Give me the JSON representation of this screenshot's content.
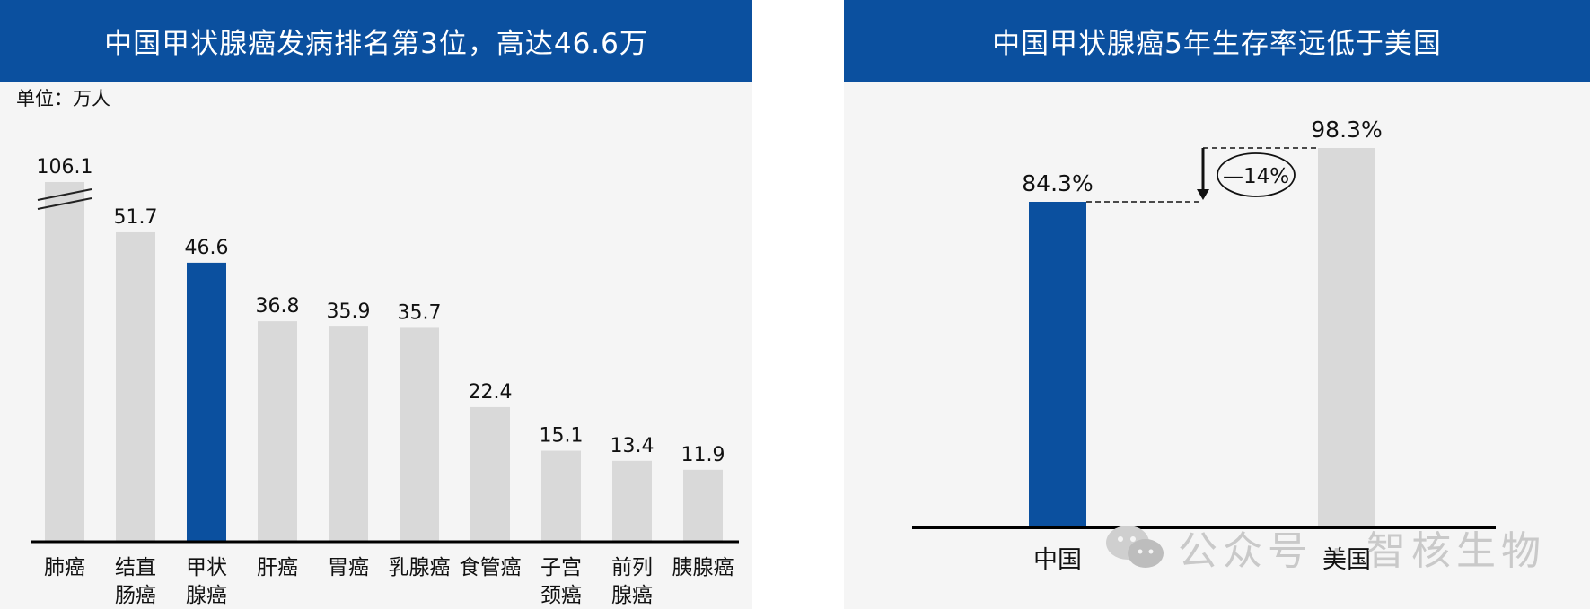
{
  "left_panel": {
    "title": "中国甲状腺癌发病排名第3位，高达46.6万",
    "unit_label": "单位：万人"
  },
  "right_panel": {
    "title": "中国甲状腺癌5年生存率远低于美国"
  },
  "watermark": "公众号 · 智核生物",
  "colors": {
    "highlight": "#0b509f",
    "bar": "#d9d9d9",
    "axis": "#000000"
  },
  "chart_data": [
    {
      "type": "bar",
      "title": "中国甲状腺癌发病排名第3位，高达46.6万",
      "ylabel": "单位：万人",
      "categories": [
        "肺癌",
        "结直肠癌",
        "甲状腺癌",
        "肝癌",
        "胃癌",
        "乳腺癌",
        "食管癌",
        "子宫颈癌",
        "前列腺癌",
        "胰腺癌"
      ],
      "category_label_lines": [
        [
          "肺癌"
        ],
        [
          "结直",
          "肠癌"
        ],
        [
          "甲状",
          "腺癌"
        ],
        [
          "肝癌"
        ],
        [
          "胃癌"
        ],
        [
          "乳腺癌"
        ],
        [
          "食管癌"
        ],
        [
          "子宫",
          "颈癌"
        ],
        [
          "前列",
          "腺癌"
        ],
        [
          "胰腺癌"
        ]
      ],
      "values": [
        106.1,
        51.7,
        46.6,
        36.8,
        35.9,
        35.7,
        22.4,
        15.1,
        13.4,
        11.9
      ],
      "value_labels": [
        "106.1",
        "51.7",
        "46.6",
        "36.8",
        "35.9",
        "35.7",
        "22.4",
        "15.1",
        "13.4",
        "11.9"
      ],
      "highlight": "甲状腺癌",
      "axis_break": "肺癌",
      "ylim": [
        0,
        55
      ],
      "grid": false,
      "legend": "none"
    },
    {
      "type": "bar",
      "title": "中国甲状腺癌5年生存率远低于美国",
      "categories": [
        "中国",
        "美国"
      ],
      "values": [
        84.3,
        98.3
      ],
      "value_labels": [
        "84.3%",
        "98.3%"
      ],
      "highlight": "中国",
      "difference_label": "—14%",
      "grid": false,
      "legend": "none"
    }
  ]
}
